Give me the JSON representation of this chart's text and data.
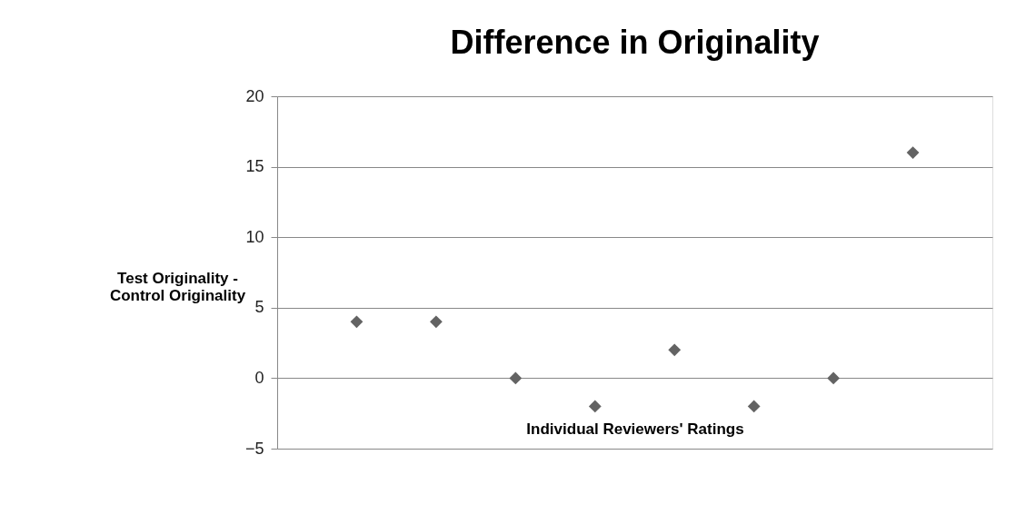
{
  "chart_data": {
    "type": "scatter",
    "title": "Difference in Originality",
    "xlabel": "Individual Reviewers' Ratings",
    "ylabel": "Test Originality - Control Originality",
    "categories": [
      null,
      null,
      null,
      null,
      null,
      null,
      null,
      null
    ],
    "series": [
      {
        "color": "#636363",
        "values": [
          4,
          4,
          0,
          -2,
          2,
          -2,
          0,
          16
        ]
      }
    ],
    "ylim": [
      -5,
      20
    ],
    "yticks": [
      -5,
      0,
      5,
      10,
      15,
      20
    ],
    "grid": "y",
    "marker": "diamond",
    "tick_labels": "y"
  }
}
